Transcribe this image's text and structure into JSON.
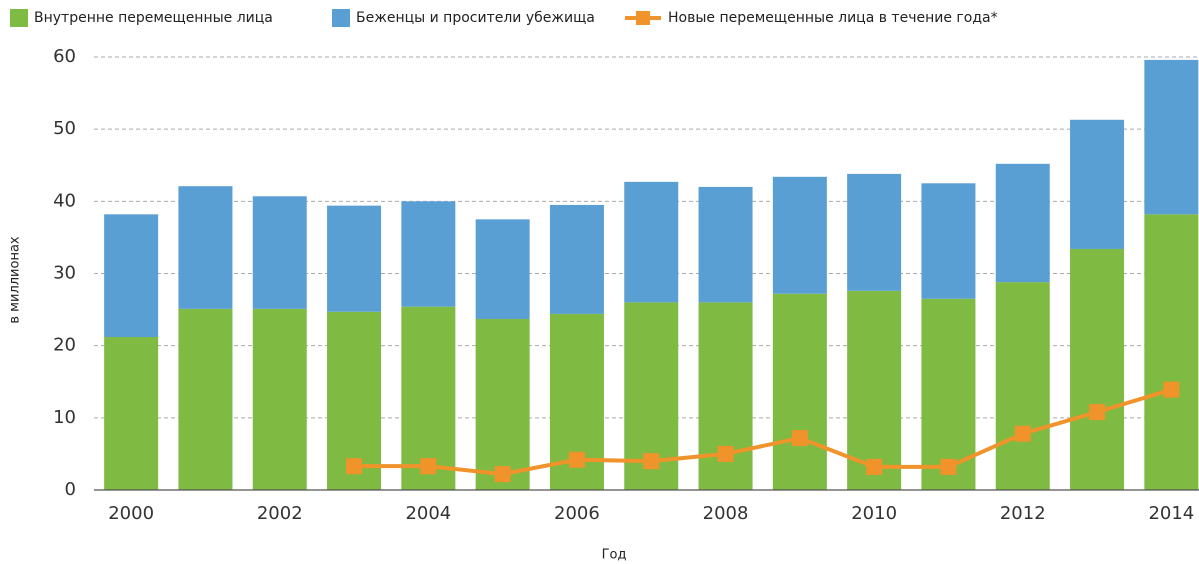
{
  "chart_data": {
    "type": "bar",
    "stacked": true,
    "x_label": "Год",
    "y_label": "в миллионах",
    "categories": [
      2000,
      null,
      2002,
      null,
      2004,
      null,
      2006,
      null,
      2008,
      null,
      2010,
      null,
      2012,
      null,
      2014
    ],
    "series": [
      {
        "name": "Внутренне перемещенные лица",
        "color": "#7fba42",
        "values": [
          21.2,
          25.1,
          25.1,
          24.7,
          25.4,
          23.7,
          24.4,
          26.0,
          26.0,
          27.2,
          27.6,
          26.5,
          28.8,
          33.4,
          38.2
        ]
      },
      {
        "name": "Беженцы и просители убежища",
        "color": "#5a9fd4",
        "values": [
          17.0,
          17.0,
          15.6,
          14.7,
          14.6,
          13.8,
          15.1,
          16.7,
          16.0,
          16.2,
          16.2,
          16.0,
          16.4,
          17.9,
          21.4
        ]
      },
      {
        "name": "Новые перемещенные лица в течение года*",
        "color": "#f0932a",
        "type": "line",
        "values": [
          null,
          null,
          null,
          3.3,
          3.3,
          2.2,
          4.2,
          4.0,
          5.0,
          7.2,
          3.2,
          3.2,
          7.8,
          10.8,
          13.9
        ]
      }
    ],
    "ylim": [
      0,
      60
    ],
    "yticks": [
      0,
      10,
      20,
      30,
      40,
      50,
      60
    ],
    "grid": true,
    "legend": "top"
  }
}
